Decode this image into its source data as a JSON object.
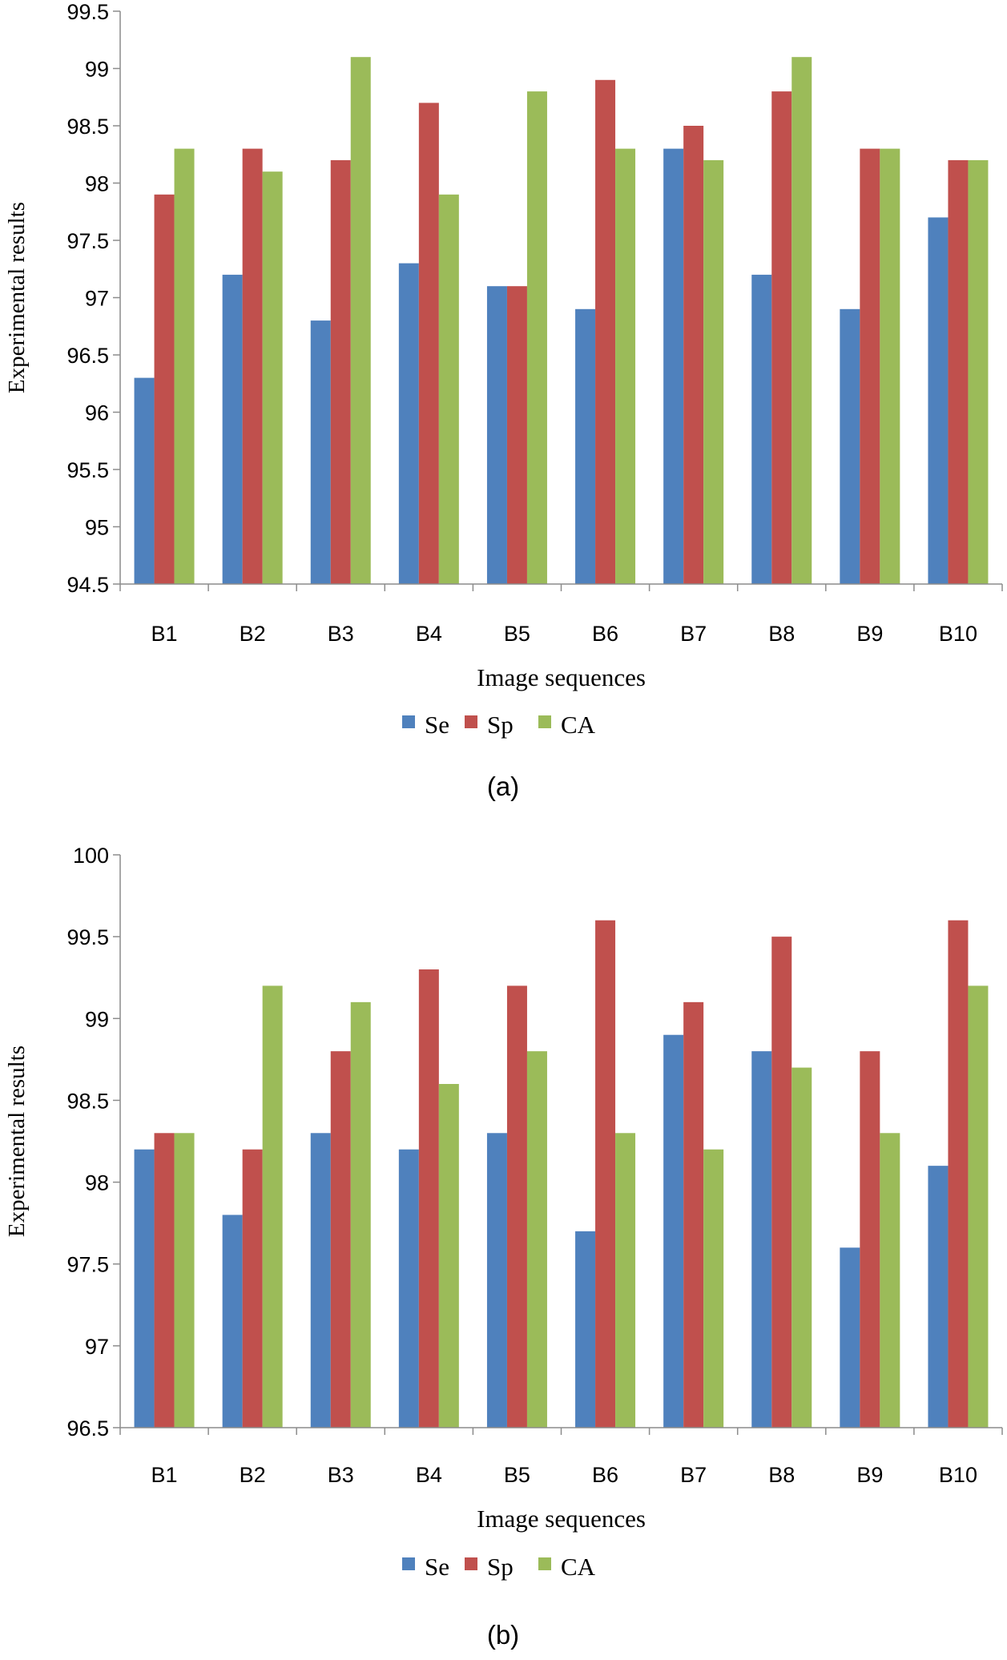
{
  "chart_data": [
    {
      "type": "bar",
      "panel": "(a)",
      "categories": [
        "B1",
        "B2",
        "B3",
        "B4",
        "B5",
        "B6",
        "B7",
        "B8",
        "B9",
        "B10"
      ],
      "series": [
        {
          "name": "Se",
          "color": "#4F81BD",
          "values": [
            96.3,
            97.2,
            96.8,
            97.3,
            97.1,
            96.9,
            98.3,
            97.2,
            96.9,
            97.7
          ]
        },
        {
          "name": "Sp",
          "color": "#C0504D",
          "values": [
            97.9,
            98.3,
            98.2,
            98.7,
            97.1,
            98.9,
            98.5,
            98.8,
            98.3,
            98.2
          ]
        },
        {
          "name": "CA",
          "color": "#9BBB59",
          "values": [
            98.3,
            98.1,
            99.1,
            97.9,
            98.8,
            98.3,
            98.2,
            99.1,
            98.3,
            98.2
          ]
        }
      ],
      "xlabel": "Image sequences",
      "ylabel": "Experimental results",
      "ylim": [
        94.5,
        99.5
      ],
      "yticks": [
        "94.5",
        "95",
        "95.5",
        "96",
        "96.5",
        "97",
        "97.5",
        "98",
        "98.5",
        "99",
        "99.5"
      ],
      "grid": false,
      "legend": "bottom"
    },
    {
      "type": "bar",
      "panel": "(b)",
      "categories": [
        "B1",
        "B2",
        "B3",
        "B4",
        "B5",
        "B6",
        "B7",
        "B8",
        "B9",
        "B10"
      ],
      "series": [
        {
          "name": "Se",
          "color": "#4F81BD",
          "values": [
            98.2,
            97.8,
            98.3,
            98.2,
            98.3,
            97.7,
            98.9,
            98.8,
            97.6,
            98.1
          ]
        },
        {
          "name": "Sp",
          "color": "#C0504D",
          "values": [
            98.3,
            98.2,
            98.8,
            99.3,
            99.2,
            99.6,
            99.1,
            99.5,
            98.8,
            99.6
          ]
        },
        {
          "name": "CA",
          "color": "#9BBB59",
          "values": [
            98.3,
            99.2,
            99.1,
            98.6,
            98.8,
            98.3,
            98.2,
            98.7,
            98.3,
            99.2
          ]
        }
      ],
      "xlabel": "Image sequences",
      "ylabel": "Experimental results",
      "ylim": [
        96.5,
        100
      ],
      "yticks": [
        "96.5",
        "97",
        "97.5",
        "98",
        "98.5",
        "99",
        "99.5",
        "100"
      ],
      "grid": false,
      "legend": "bottom"
    }
  ]
}
